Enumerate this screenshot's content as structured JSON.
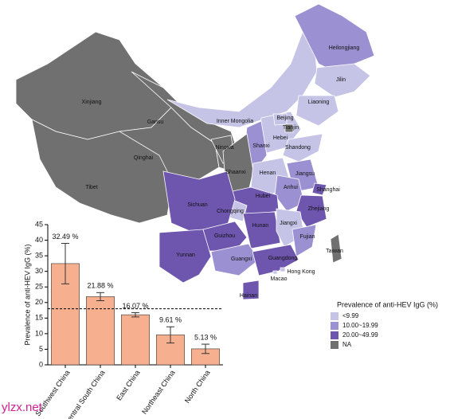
{
  "map": {
    "provinces": [
      {
        "name": "Xinjiang",
        "class": "NA"
      },
      {
        "name": "Tibet",
        "class": "NA"
      },
      {
        "name": "Qinghai",
        "class": "NA"
      },
      {
        "name": "Gansu",
        "class": "NA"
      },
      {
        "name": "Inner Mongolia",
        "class": "<9.99"
      },
      {
        "name": "Heilongjiang",
        "class": "10.00~19.99"
      },
      {
        "name": "Jilin",
        "class": "<9.99"
      },
      {
        "name": "Liaoning",
        "class": "<9.99"
      },
      {
        "name": "Hebei",
        "class": "<9.99"
      },
      {
        "name": "Beijing",
        "class": "<9.99"
      },
      {
        "name": "Tianjin",
        "class": "NA"
      },
      {
        "name": "Shanxi",
        "class": "10.00~19.99"
      },
      {
        "name": "Shandong",
        "class": "<9.99"
      },
      {
        "name": "Ningxia",
        "class": "NA"
      },
      {
        "name": "Shaanxi",
        "class": "NA"
      },
      {
        "name": "Henan",
        "class": "<9.99"
      },
      {
        "name": "Jiangsu",
        "class": "10.00~19.99"
      },
      {
        "name": "Anhui",
        "class": "10.00~19.99"
      },
      {
        "name": "Shanghai",
        "class": "20.00~49.99"
      },
      {
        "name": "Zhejiang",
        "class": "20.00~49.99"
      },
      {
        "name": "Hubei",
        "class": "20.00~49.99"
      },
      {
        "name": "Chongqing",
        "class": "<9.99"
      },
      {
        "name": "Sichuan",
        "class": "20.00~49.99"
      },
      {
        "name": "Guizhou",
        "class": "20.00~49.99"
      },
      {
        "name": "Hunan",
        "class": "20.00~49.99"
      },
      {
        "name": "Jiangxi",
        "class": "<9.99"
      },
      {
        "name": "Fujian",
        "class": "10.00~19.99"
      },
      {
        "name": "Yunnan",
        "class": "20.00~49.99"
      },
      {
        "name": "Guangxi",
        "class": "10.00~19.99"
      },
      {
        "name": "Guangdong",
        "class": "20.00~49.99"
      },
      {
        "name": "Hainan",
        "class": "20.00~49.99"
      },
      {
        "name": "Taiwan",
        "class": "NA"
      },
      {
        "name": "Hong Kong",
        "class": "<9.99"
      },
      {
        "name": "Macao",
        "class": "<9.99"
      }
    ],
    "legend": {
      "title": "Prevalence of anti-HEV IgG (%)",
      "items": [
        {
          "label": "<9.99",
          "color": "#c5c3e6"
        },
        {
          "label": "10.00~19.99",
          "color": "#9b90d2"
        },
        {
          "label": "20.00~49.99",
          "color": "#6e55ae"
        },
        {
          "label": "NA",
          "color": "#707070"
        }
      ]
    }
  },
  "chart_data": {
    "type": "bar",
    "ylabel": "Prevalence of anti-HEV IgG (%)",
    "categories": [
      "Southwest China",
      "Central South China",
      "East China",
      "Northeast China",
      "North China"
    ],
    "values": [
      32.49,
      21.88,
      16.07,
      9.61,
      5.13
    ],
    "value_labels": [
      "32.49 %",
      "21.88 %",
      "16.07 %",
      "9.61 %",
      "5.13 %"
    ],
    "errors": [
      6.5,
      1.3,
      0.7,
      2.6,
      1.5
    ],
    "color": "#f7b08f",
    "ylim": [
      0,
      45
    ],
    "yticks": [
      0,
      5,
      10,
      15,
      20,
      25,
      30,
      35,
      40,
      45
    ],
    "reference_line": 18
  },
  "watermark": "ylzx.net"
}
